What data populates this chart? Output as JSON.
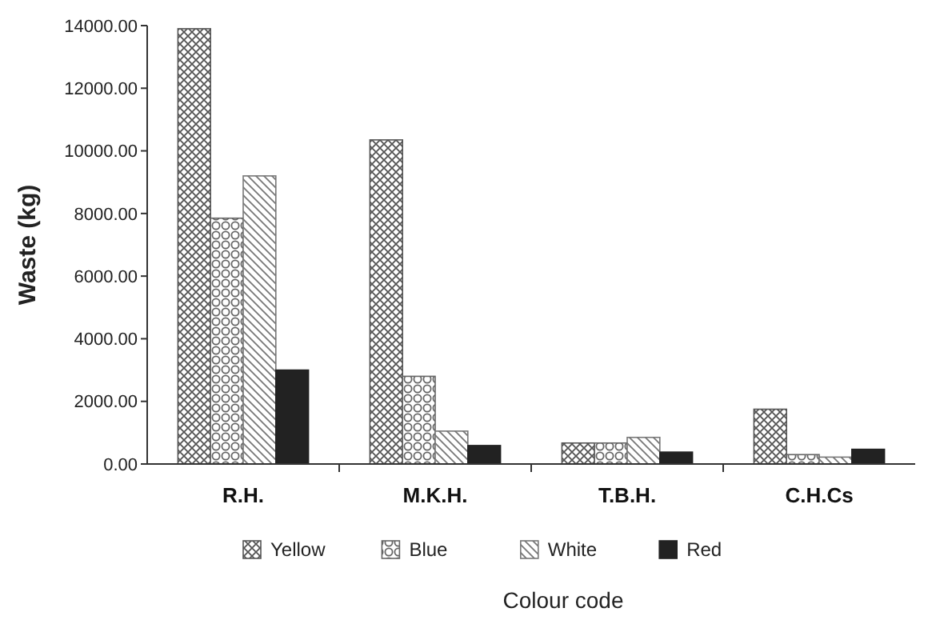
{
  "chart_data": {
    "type": "bar",
    "xlabel": "Colour code",
    "ylabel": "Waste (kg)",
    "categories": [
      "R.H.",
      "M.K.H.",
      "T.B.H.",
      "C.H.Cs"
    ],
    "series": [
      {
        "name": "Yellow",
        "color": "#555555",
        "values": [
          13900,
          10350,
          670,
          1750
        ]
      },
      {
        "name": "Blue",
        "color": "#666666",
        "values": [
          7850,
          2800,
          670,
          300
        ]
      },
      {
        "name": "White",
        "color": "#777777",
        "values": [
          9200,
          1050,
          850,
          220
        ]
      },
      {
        "name": "Red",
        "color": "#222222",
        "values": [
          3000,
          590,
          380,
          470
        ]
      }
    ],
    "ylim": [
      0,
      14000
    ],
    "yticks": [
      {
        "value": 0,
        "label": "0.00"
      },
      {
        "value": 2000,
        "label": "2000.00"
      },
      {
        "value": 4000,
        "label": "4000.00"
      },
      {
        "value": 6000,
        "label": "6000.00"
      },
      {
        "value": 8000,
        "label": "8000.00"
      },
      {
        "value": 10000,
        "label": "10000.00"
      },
      {
        "value": 12000,
        "label": "12000.00"
      },
      {
        "value": 14000,
        "label": "14000.00"
      }
    ],
    "legend": "bottom"
  }
}
